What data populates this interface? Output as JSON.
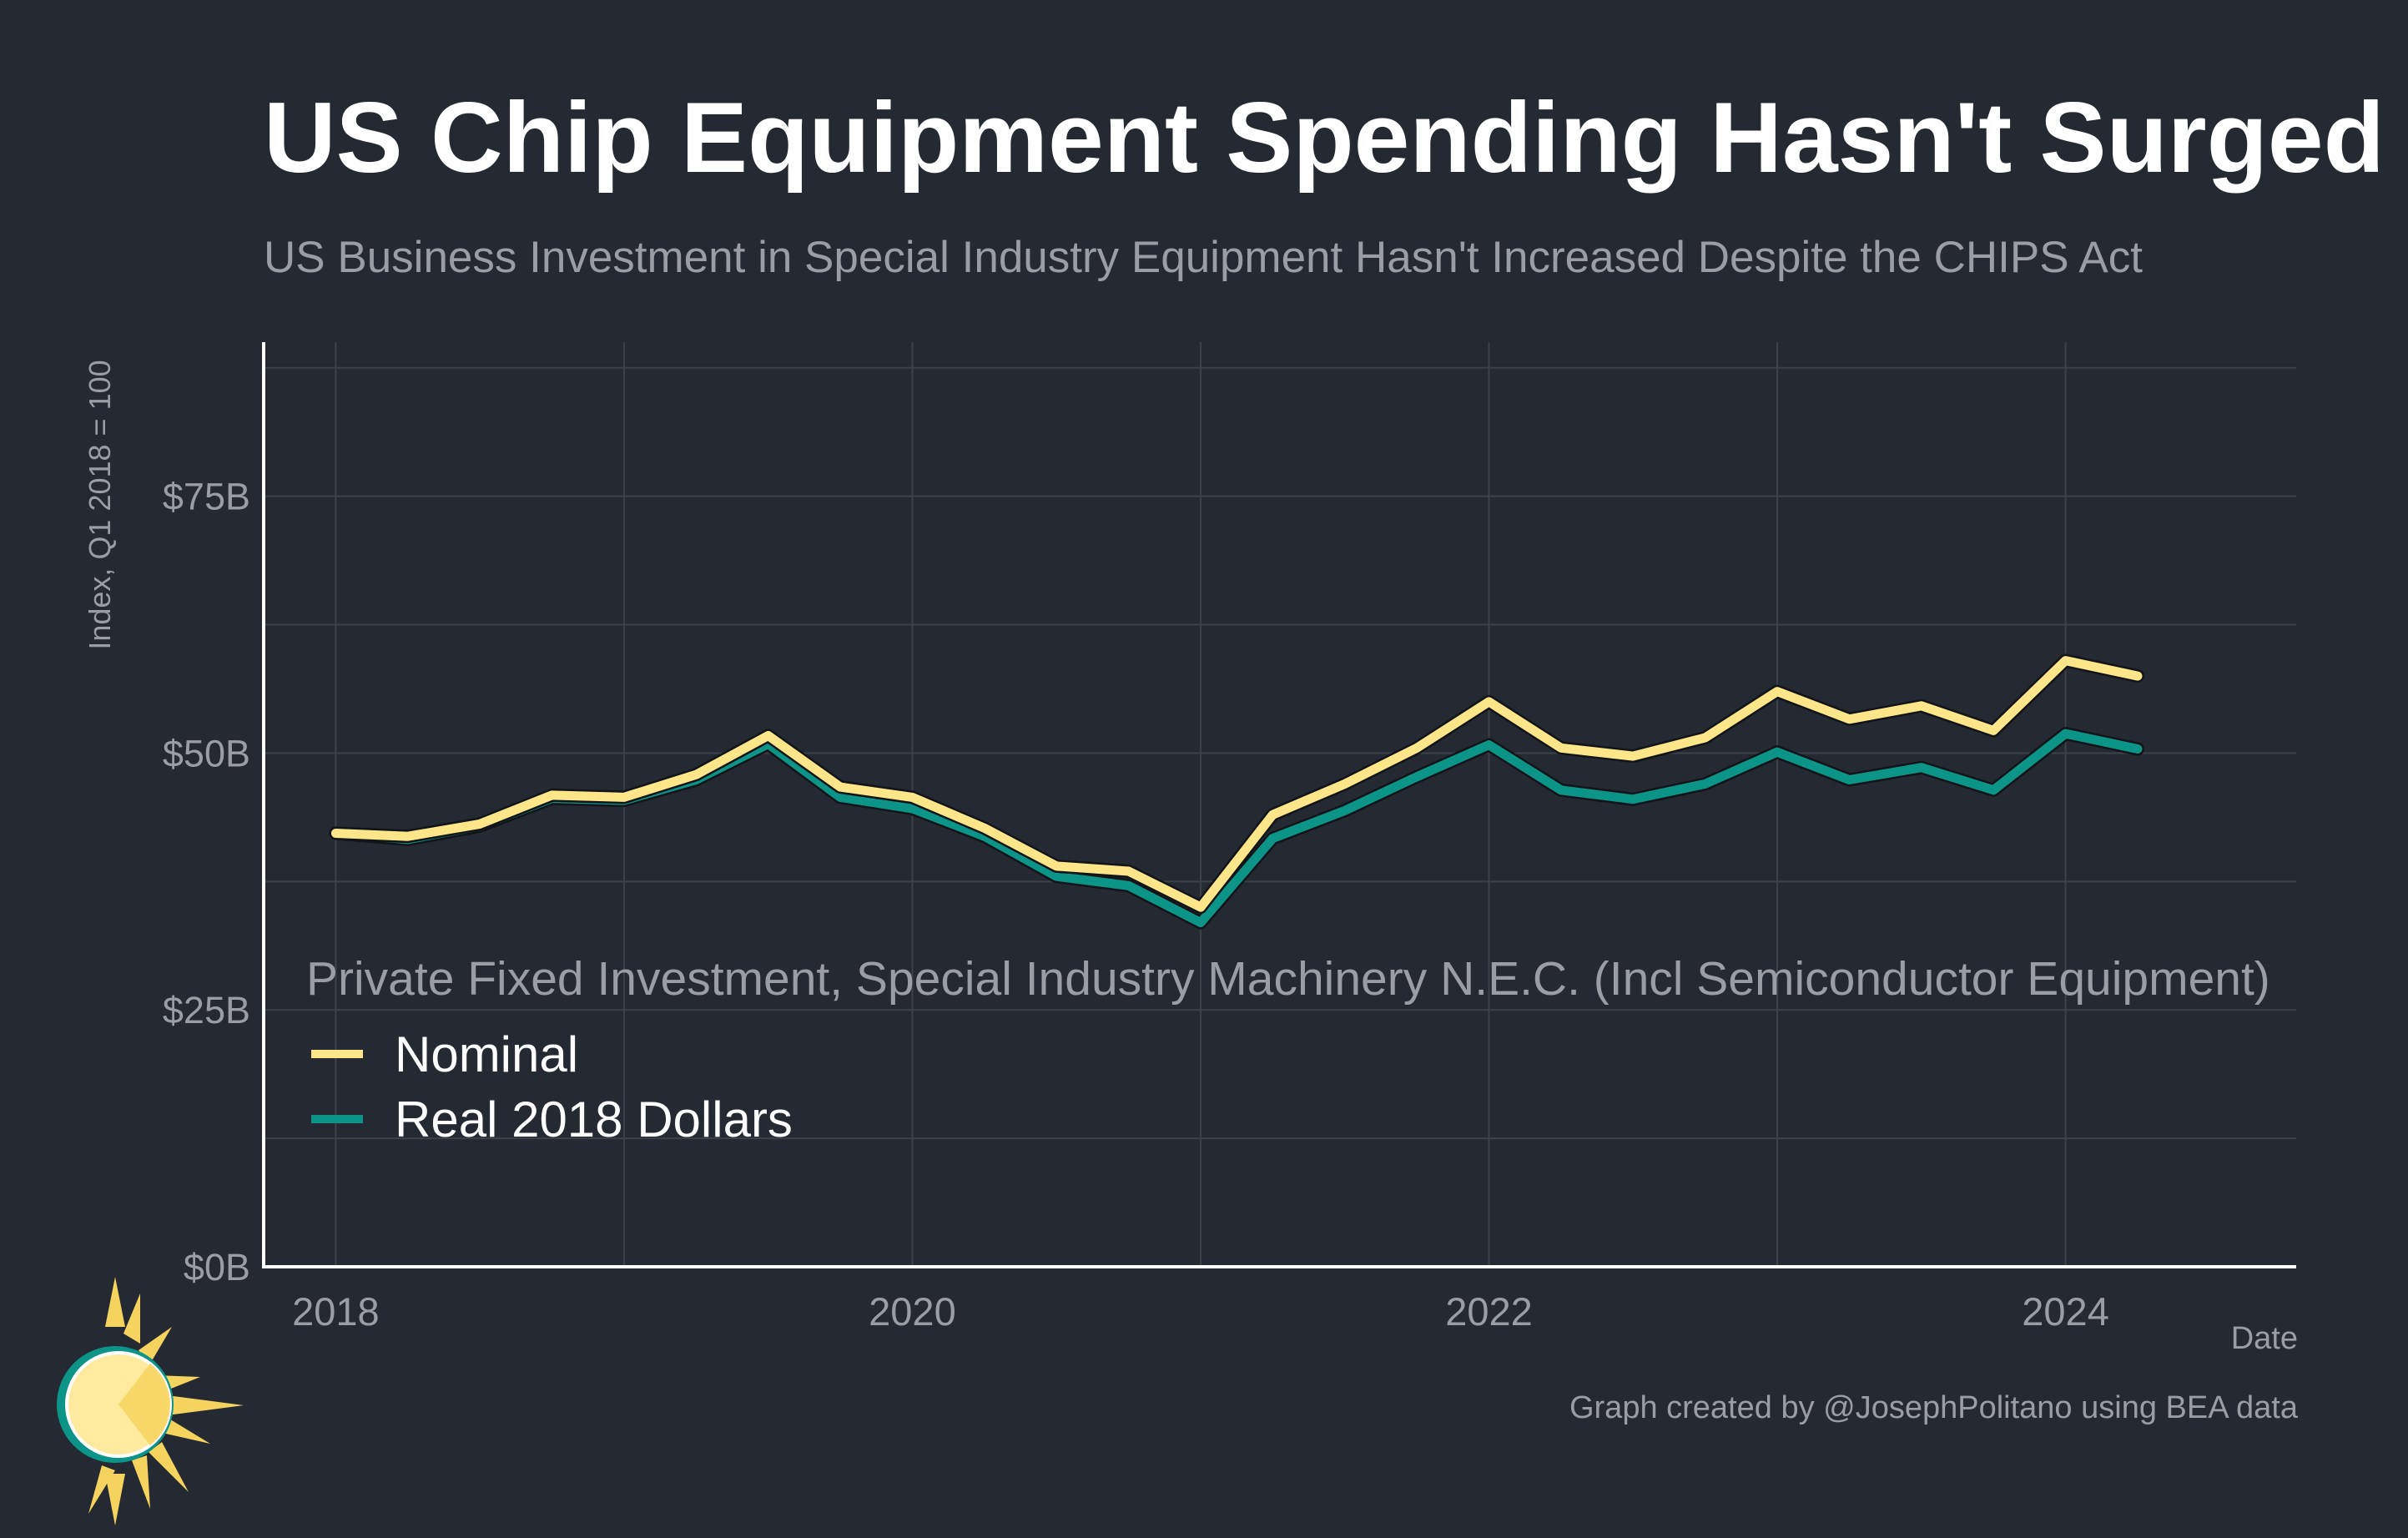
{
  "chart_data": {
    "type": "line",
    "title": "US Chip Equipment Spending Hasn't Surged",
    "subtitle": "US Business Investment in Special Industry Equipment Hasn't Increased Despite the CHIPS Act",
    "ylabel": "Index, Q1 2018 = 100",
    "xlabel": "Date",
    "caption": "Graph created by @JosephPolitano using BEA data",
    "ylim": [
      0,
      90
    ],
    "xlim": [
      2017.75,
      2024.8
    ],
    "yticks": [
      0,
      25,
      50,
      75
    ],
    "ytick_labels": [
      "$0B",
      "$25B",
      "$50B",
      "$75B"
    ],
    "xticks": [
      2018,
      2020,
      2022,
      2024
    ],
    "xtick_labels": [
      "2018",
      "2020",
      "2022",
      "2024"
    ],
    "grid": true,
    "legend_title": "Private Fixed Investment, Special Industry Machinery N.E.C. (Incl Semiconductor Equipment)",
    "legend_position": "bottom-left",
    "x": [
      2018.0,
      2018.25,
      2018.5,
      2018.75,
      2019.0,
      2019.25,
      2019.5,
      2019.75,
      2020.0,
      2020.25,
      2020.5,
      2020.75,
      2021.0,
      2021.25,
      2021.5,
      2021.75,
      2022.0,
      2022.25,
      2022.5,
      2022.75,
      2023.0,
      2023.25,
      2023.5,
      2023.75,
      2024.0,
      2024.25
    ],
    "series": [
      {
        "name": "Nominal",
        "color": "#fde68a",
        "values": [
          42.2,
          41.9,
          43.1,
          45.9,
          45.7,
          47.9,
          51.7,
          46.7,
          45.7,
          42.7,
          39.0,
          38.5,
          35.0,
          44.0,
          47.0,
          50.5,
          55.0,
          50.5,
          49.7,
          51.5,
          56.0,
          53.3,
          54.6,
          52.2,
          59.0,
          57.5
        ]
      },
      {
        "name": "Real 2018 Dollars",
        "color": "#0d9488",
        "values": [
          42.2,
          41.6,
          42.9,
          45.6,
          45.4,
          47.4,
          50.9,
          45.7,
          44.6,
          41.9,
          38.0,
          37.1,
          33.5,
          41.7,
          44.4,
          47.7,
          50.8,
          46.4,
          45.5,
          47.0,
          50.1,
          47.4,
          48.6,
          46.4,
          51.9,
          50.4
        ]
      }
    ]
  },
  "colors": {
    "background": "#252931",
    "grid": "#3d414a",
    "axis": "#ffffff",
    "muted_text": "#9a9da4"
  },
  "logo": {
    "icon": "sun-icon"
  }
}
